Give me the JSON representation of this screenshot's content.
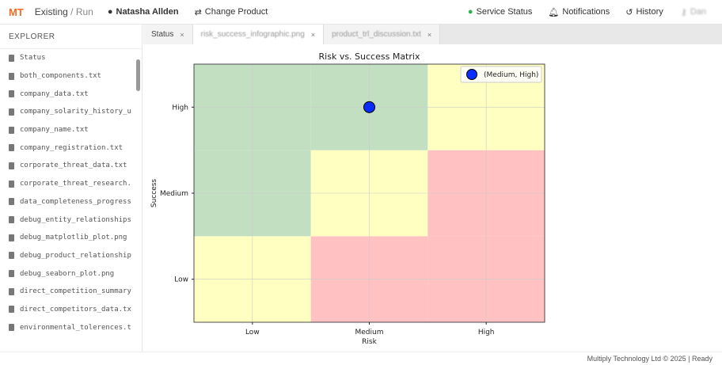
{
  "header": {
    "logo": "MT",
    "app": "Existing",
    "mode": "/ Run",
    "user": "Natasha Allden",
    "change_product": "Change Product",
    "service_status": "Service Status",
    "notifications": "Notifications",
    "history": "History",
    "account": "Dan"
  },
  "sidebar": {
    "title": "EXPLORER",
    "files": [
      "Status",
      "both_components.txt",
      "company_data.txt",
      "company_solarity_history_u",
      "company_name.txt",
      "company_registration.txt",
      "corporate_threat_data.txt",
      "corporate_threat_research.",
      "data_completeness_progress",
      "debug_entity_relationships",
      "debug_matplotlib_plot.png",
      "debug_product_relationship",
      "debug_seaborn_plot.png",
      "direct_competition_summary",
      "direct_competitors_data.tx",
      "environmental_tolerences.t"
    ]
  },
  "tabs": [
    {
      "label": "Status"
    },
    {
      "label": "risk_success_infographic.png"
    },
    {
      "label": "product_trl_discussion.txt"
    }
  ],
  "footer": "Multiply Technology Ltd © 2025 | Ready",
  "chart_data": {
    "type": "scatter",
    "title": "Risk vs. Success Matrix",
    "xlabel": "Risk",
    "ylabel": "Success",
    "x_categories": [
      "Low",
      "Medium",
      "High"
    ],
    "y_categories": [
      "Low",
      "Medium",
      "High"
    ],
    "cells": [
      [
        "yellow",
        "red",
        "red"
      ],
      [
        "green",
        "yellow",
        "red"
      ],
      [
        "green",
        "green",
        "yellow"
      ]
    ],
    "colors": {
      "green": "#c2dfc1",
      "yellow": "#ffffc2",
      "red": "#ffc1c1",
      "point": "#0a2cff"
    },
    "points": [
      {
        "x": "Medium",
        "y": "High",
        "label": "(Medium, High)"
      }
    ],
    "legend": "top-right",
    "grid": true
  }
}
